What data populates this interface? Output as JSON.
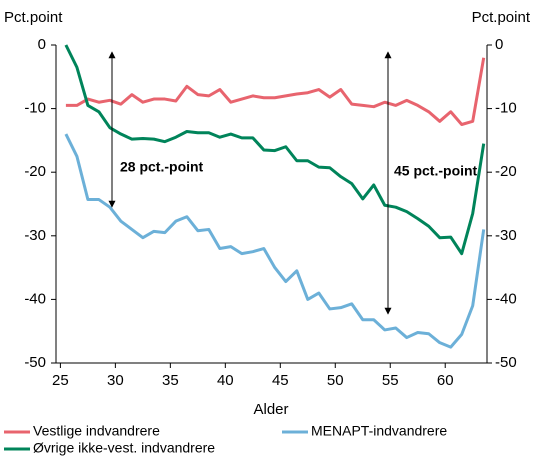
{
  "chart_data": {
    "type": "line",
    "y_label": "Pct.point",
    "y2_label": "Pct.point",
    "x_label": "Alder",
    "annotations": [
      "28 pct.-point",
      "45 pct.-point"
    ],
    "x": [
      25.5,
      26.5,
      27.5,
      28.5,
      29.5,
      30.5,
      31.5,
      32.5,
      33.5,
      34.5,
      35.5,
      36.5,
      37.5,
      38.5,
      39.5,
      40.5,
      41.5,
      42.5,
      43.5,
      44.5,
      45.5,
      46.5,
      47.5,
      48.5,
      49.5,
      50.5,
      51.5,
      52.5,
      53.5,
      54.5,
      55.5,
      56.5,
      57.5,
      58.5,
      59.5,
      60.5,
      61.5,
      62.5,
      63.5
    ],
    "series": [
      {
        "name": "Vestlige indvandrere",
        "color": "#e8646e",
        "values": [
          -9.5,
          -9.5,
          -8.5,
          -9,
          -8.7,
          -9.3,
          -7.8,
          -9,
          -8.5,
          -8.5,
          -8.8,
          -6.5,
          -7.8,
          -8,
          -7,
          -9,
          -8.5,
          -8,
          -8.3,
          -8.3,
          -8,
          -7.7,
          -7.5,
          -7,
          -8.2,
          -7,
          -9.3,
          -9.5,
          -9.7,
          -9,
          -9.5,
          -8.7,
          -9.5,
          -10.5,
          -12,
          -10.5,
          -12.5,
          -12,
          -2
        ]
      },
      {
        "name": "MENAPT-indvandrere",
        "color": "#6cb0d8",
        "values": [
          -14,
          -17.5,
          -24.3,
          -24.3,
          -25.5,
          -27.7,
          -29,
          -30.3,
          -29.3,
          -29.5,
          -27.7,
          -27,
          -29.2,
          -29,
          -32,
          -31.7,
          -32.8,
          -32.5,
          -32,
          -35,
          -37.2,
          -35.5,
          -40,
          -39,
          -41.5,
          -41.3,
          -40.7,
          -43.2,
          -43.2,
          -44.8,
          -44.5,
          -46,
          -45.2,
          -45.4,
          -46.8,
          -47.5,
          -45.5,
          -41,
          -29
        ]
      },
      {
        "name": "Øvrige ikke-vest. indvandrere",
        "color": "#00845a",
        "values": [
          0,
          -3.5,
          -9.5,
          -10.5,
          -13,
          -14,
          -14.8,
          -14.7,
          -14.8,
          -15.2,
          -14.5,
          -13.6,
          -13.8,
          -13.8,
          -14.5,
          -14,
          -14.6,
          -14.6,
          -16.5,
          -16.6,
          -16,
          -18.2,
          -18.2,
          -19.2,
          -19.3,
          -20.7,
          -21.8,
          -24.2,
          -22,
          -25.2,
          -25.5,
          -26.2,
          -27.3,
          -28.5,
          -30.3,
          -30.2,
          -32.8,
          -26.5,
          -15.5
        ]
      }
    ],
    "xlim": [
      24.6,
      63.8
    ],
    "xticks": [
      25,
      30,
      35,
      40,
      45,
      50,
      55,
      60
    ],
    "ylim": [
      -50,
      0
    ],
    "yticks": [
      0,
      -10,
      -20,
      -30,
      -40,
      -50
    ],
    "y2lim": [
      -50,
      0
    ],
    "y2ticks": [
      0,
      -10,
      -20,
      -30,
      -40,
      -50
    ],
    "grid": false
  }
}
